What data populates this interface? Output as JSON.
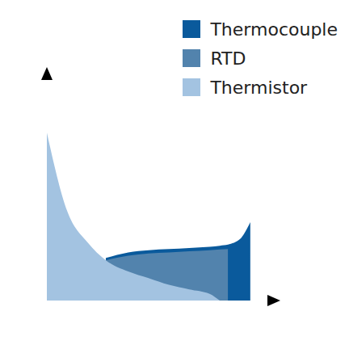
{
  "chart_data": {
    "type": "area",
    "x": [
      0,
      10,
      20,
      29,
      40,
      50,
      60,
      70,
      80,
      85,
      89,
      95,
      100
    ],
    "series": [
      {
        "name": "Thermocouple",
        "color": "#0a5a9c",
        "values": [
          null,
          null,
          null,
          19,
          21.5,
          22.5,
          23,
          23.5,
          24,
          24.5,
          25,
          27.5,
          35
        ]
      },
      {
        "name": "RTD",
        "color": "#5283ad",
        "values": [
          null,
          null,
          null,
          18,
          20,
          21,
          21.5,
          22,
          22.5,
          22.8,
          23,
          null,
          null
        ]
      },
      {
        "name": "Thermistor",
        "color": "#a3c3e1",
        "values": [
          75,
          40,
          26,
          18,
          13,
          10,
          7,
          5,
          3,
          0,
          null,
          null,
          null
        ]
      }
    ],
    "xlim": [
      0,
      110
    ],
    "ylim": [
      0,
      100
    ],
    "tick_labels": false,
    "grid": false,
    "legend": "upper right"
  }
}
